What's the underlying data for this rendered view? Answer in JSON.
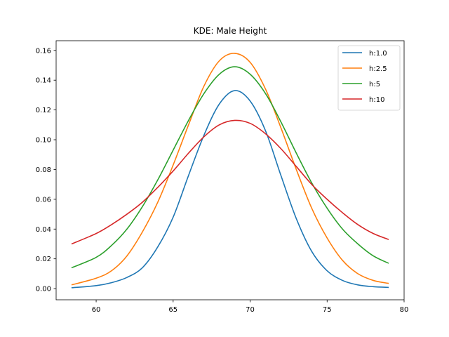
{
  "chart_data": {
    "type": "line",
    "title": "KDE: Male Height",
    "xlabel": "",
    "ylabel": "",
    "xlim": [
      57.4,
      80.0
    ],
    "ylim": [
      -0.0075,
      0.1665
    ],
    "xticks": [
      60,
      65,
      70,
      75,
      80
    ],
    "yticks": [
      0.0,
      0.02,
      0.04,
      0.06,
      0.08,
      0.1,
      0.12,
      0.14,
      0.16
    ],
    "grid": false,
    "legend_position": "top-right",
    "series": [
      {
        "name": "h:1.0",
        "color": "#1f77b4",
        "x": [
          58.4,
          60,
          61,
          62,
          63,
          64,
          65,
          66,
          67,
          68,
          69,
          70,
          71,
          72,
          73,
          74,
          75,
          76,
          77,
          78,
          79
        ],
        "y": [
          0.0006,
          0.002,
          0.004,
          0.0075,
          0.014,
          0.028,
          0.048,
          0.076,
          0.103,
          0.124,
          0.133,
          0.126,
          0.106,
          0.076,
          0.047,
          0.025,
          0.012,
          0.0055,
          0.0025,
          0.0013,
          0.0008
        ]
      },
      {
        "name": "h:2.5",
        "color": "#ff7f0e",
        "x": [
          58.4,
          60,
          61,
          62,
          63,
          64,
          65,
          66,
          67,
          68,
          69,
          70,
          71,
          72,
          73,
          74,
          75,
          76,
          77,
          78,
          79
        ],
        "y": [
          0.0025,
          0.007,
          0.012,
          0.022,
          0.038,
          0.058,
          0.083,
          0.11,
          0.136,
          0.153,
          0.158,
          0.152,
          0.134,
          0.108,
          0.08,
          0.054,
          0.034,
          0.019,
          0.01,
          0.0055,
          0.0035
        ]
      },
      {
        "name": "h:5",
        "color": "#2ca02c",
        "x": [
          58.4,
          60,
          61,
          62,
          63,
          64,
          65,
          66,
          67,
          68,
          69,
          70,
          71,
          72,
          73,
          74,
          75,
          76,
          77,
          78,
          79
        ],
        "y": [
          0.014,
          0.021,
          0.029,
          0.04,
          0.055,
          0.073,
          0.093,
          0.113,
          0.131,
          0.144,
          0.149,
          0.144,
          0.131,
          0.112,
          0.091,
          0.071,
          0.054,
          0.04,
          0.03,
          0.022,
          0.017
        ]
      },
      {
        "name": "h:10",
        "color": "#d62728",
        "x": [
          58.4,
          60,
          61,
          62,
          63,
          64,
          65,
          66,
          67,
          68,
          69,
          70,
          71,
          72,
          73,
          74,
          75,
          76,
          77,
          78,
          79
        ],
        "y": [
          0.03,
          0.037,
          0.043,
          0.05,
          0.058,
          0.068,
          0.079,
          0.091,
          0.102,
          0.11,
          0.113,
          0.111,
          0.104,
          0.094,
          0.082,
          0.07,
          0.06,
          0.051,
          0.043,
          0.037,
          0.033
        ]
      }
    ]
  }
}
